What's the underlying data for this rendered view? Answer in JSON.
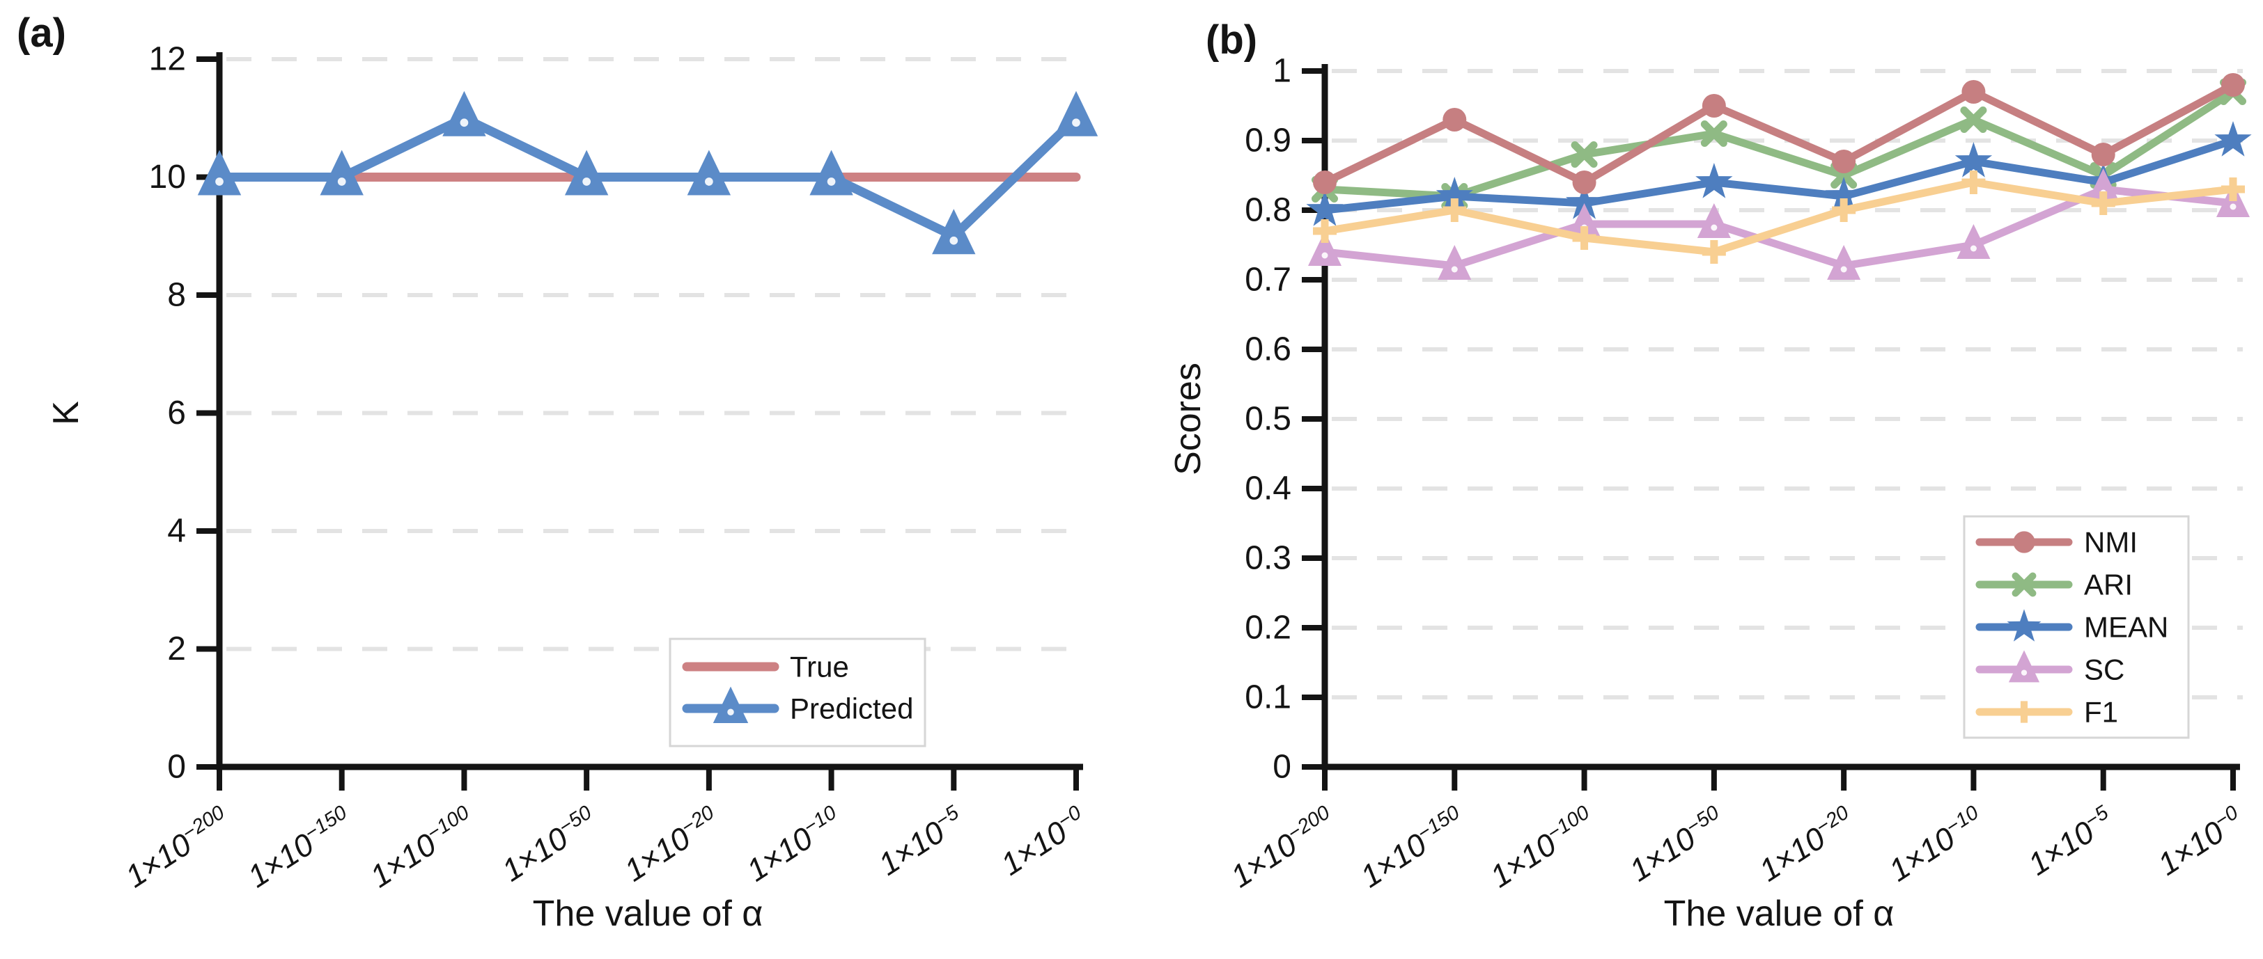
{
  "figure": {
    "background": "#ffffff",
    "axis_color": "#141414",
    "grid_color": "#e3e3e3",
    "legend_border_color": "#d6d6d6"
  },
  "chart_data": [
    {
      "id": "a",
      "type": "line",
      "panel_label": "(a)",
      "xlabel": "The value of α",
      "ylabel": "K",
      "ylim": [
        0,
        12
      ],
      "yticks": [
        "0",
        "2",
        "4",
        "6",
        "8",
        "10",
        "12"
      ],
      "grid": "dashed horizontal",
      "legend_position": "inside lower right",
      "x_tick_labels": [
        {
          "m": "1×10",
          "e": "−200"
        },
        {
          "m": "1×10",
          "e": "−150"
        },
        {
          "m": "1×10",
          "e": "−100"
        },
        {
          "m": "1×10",
          "e": "−50"
        },
        {
          "m": "1×10",
          "e": "−20"
        },
        {
          "m": "1×10",
          "e": "−10"
        },
        {
          "m": "1×10",
          "e": "−5"
        },
        {
          "m": "1×10",
          "e": "−0"
        }
      ],
      "series": [
        {
          "name": "True",
          "color": "#cd8183",
          "marker": "none",
          "values": [
            10,
            10,
            10,
            10,
            10,
            10,
            10,
            10
          ]
        },
        {
          "name": "Predicted",
          "color": "#5b8bc8",
          "marker": "triangle",
          "values": [
            10,
            10,
            11,
            10,
            10,
            10,
            9,
            11
          ]
        }
      ]
    },
    {
      "id": "b",
      "type": "line",
      "panel_label": "(b)",
      "xlabel": "The value of α",
      "ylabel": "Scores",
      "ylim": [
        0,
        1
      ],
      "yticks": [
        "0",
        "0.1",
        "0.2",
        "0.3",
        "0.4",
        "0.5",
        "0.6",
        "0.7",
        "0.8",
        "0.9",
        "1"
      ],
      "grid": "dashed horizontal",
      "legend_position": "inside right",
      "x_tick_labels": [
        {
          "m": "1×10",
          "e": "−200"
        },
        {
          "m": "1×10",
          "e": "−150"
        },
        {
          "m": "1×10",
          "e": "−100"
        },
        {
          "m": "1×10",
          "e": "−50"
        },
        {
          "m": "1×10",
          "e": "−20"
        },
        {
          "m": "1×10",
          "e": "−10"
        },
        {
          "m": "1×10",
          "e": "−5"
        },
        {
          "m": "1×10",
          "e": "−0"
        }
      ],
      "series": [
        {
          "name": "NMI",
          "color": "#c67f81",
          "marker": "circle",
          "values": [
            0.84,
            0.93,
            0.84,
            0.95,
            0.87,
            0.97,
            0.88,
            0.98
          ]
        },
        {
          "name": "ARI",
          "color": "#8fba84",
          "marker": "x",
          "values": [
            0.83,
            0.82,
            0.88,
            0.91,
            0.85,
            0.93,
            0.85,
            0.97
          ]
        },
        {
          "name": "MEAN",
          "color": "#4e7ebf",
          "marker": "star",
          "values": [
            0.8,
            0.82,
            0.81,
            0.84,
            0.82,
            0.87,
            0.84,
            0.9
          ]
        },
        {
          "name": "SC",
          "color": "#d3a4d3",
          "marker": "triangle",
          "values": [
            0.74,
            0.72,
            0.78,
            0.78,
            0.72,
            0.75,
            0.83,
            0.81
          ]
        },
        {
          "name": "F1",
          "color": "#f8cf92",
          "marker": "plus",
          "values": [
            0.77,
            0.8,
            0.76,
            0.74,
            0.8,
            0.84,
            0.81,
            0.83
          ]
        }
      ]
    }
  ]
}
